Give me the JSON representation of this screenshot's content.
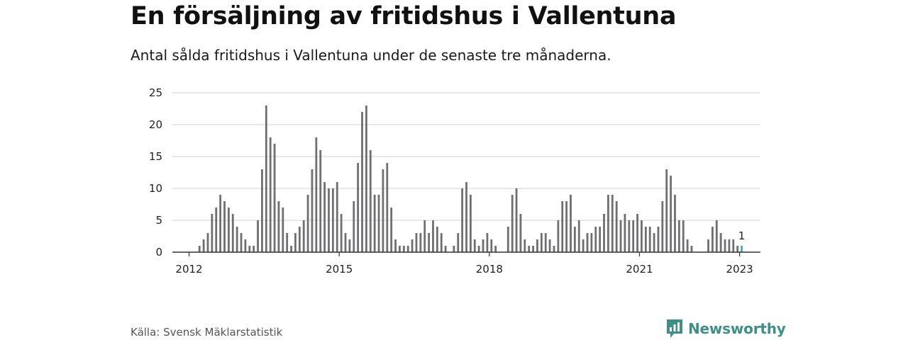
{
  "header": {
    "title": "En försäljning av fritidshus i Vallentuna",
    "subtitle": "Antal sålda fritidshus i Vallentuna under de senaste tre månaderna."
  },
  "footer": {
    "source": "Källa: Svensk Mäklarstatistik",
    "logo_text": "Newsworthy"
  },
  "colors": {
    "bar": "#6f6f73",
    "highlight": "#3bb3b8",
    "grid": "#d9d9d9",
    "axis": "#333333",
    "brand": "#3d8f88"
  },
  "chart_data": {
    "type": "bar",
    "title": "En försäljning av fritidshus i Vallentuna",
    "subtitle": "Antal sålda fritidshus i Vallentuna under de senaste tre månaderna.",
    "x_start": "2012-01",
    "frequency": "monthly",
    "xlim": [
      "2011-09",
      "2023-06"
    ],
    "x_tick_labels": [
      "2012",
      "2015",
      "2018",
      "2021",
      "2023"
    ],
    "y_ticks": [
      0,
      5,
      10,
      15,
      20,
      25
    ],
    "ylim": [
      0,
      25
    ],
    "grid": true,
    "highlight_index": 132,
    "highlight_label": "1",
    "values": [
      0,
      0,
      1,
      2,
      3,
      6,
      7,
      9,
      8,
      7,
      6,
      4,
      3,
      2,
      1,
      1,
      5,
      13,
      23,
      18,
      17,
      8,
      7,
      3,
      1,
      3,
      4,
      5,
      9,
      13,
      18,
      16,
      11,
      10,
      10,
      11,
      6,
      3,
      2,
      8,
      14,
      22,
      23,
      16,
      9,
      9,
      13,
      14,
      7,
      2,
      1,
      1,
      1,
      2,
      3,
      3,
      5,
      3,
      5,
      4,
      3,
      1,
      0,
      1,
      3,
      10,
      11,
      9,
      2,
      1,
      2,
      3,
      2,
      1,
      0,
      0,
      4,
      9,
      10,
      6,
      2,
      1,
      1,
      2,
      3,
      3,
      2,
      1,
      5,
      8,
      8,
      9,
      4,
      5,
      2,
      3,
      3,
      4,
      4,
      6,
      9,
      9,
      8,
      5,
      6,
      5,
      5,
      6,
      5,
      4,
      4,
      3,
      4,
      8,
      13,
      12,
      9,
      5,
      5,
      2,
      1,
      0,
      0,
      0,
      2,
      4,
      5,
      3,
      2,
      2,
      2,
      1,
      1
    ]
  }
}
